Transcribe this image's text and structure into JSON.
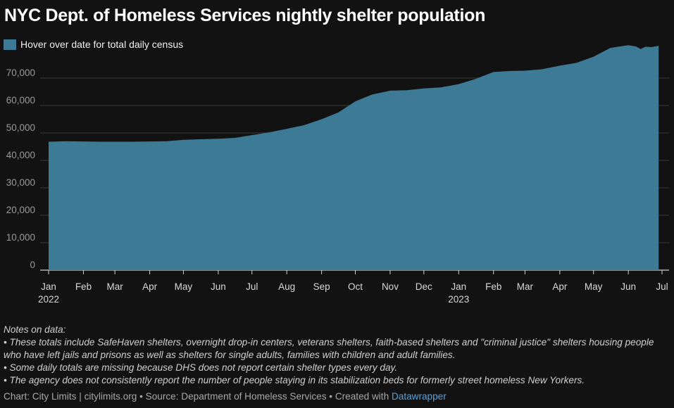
{
  "title": "NYC Dept. of Homeless Services nightly shelter population",
  "legend": {
    "label": "Hover over date for total daily census",
    "color": "#3d7a96"
  },
  "chart_data": {
    "type": "area",
    "title": "NYC Dept. of Homeless Services nightly shelter population",
    "ylim": [
      0,
      80000
    ],
    "yticks": [
      0,
      10000,
      20000,
      30000,
      40000,
      50000,
      60000,
      70000
    ],
    "ytick_labels": [
      "0",
      "10,000",
      "20,000",
      "30,000",
      "40,000",
      "50,000",
      "60,000",
      "70,000"
    ],
    "xlim": [
      "2022-01-01",
      "2023-07-01"
    ],
    "xticks": [
      {
        "date": "2022-01-01",
        "label": "Jan",
        "year": "2022"
      },
      {
        "date": "2022-02-01",
        "label": "Feb"
      },
      {
        "date": "2022-03-01",
        "label": "Mar"
      },
      {
        "date": "2022-04-01",
        "label": "Apr"
      },
      {
        "date": "2022-05-01",
        "label": "May"
      },
      {
        "date": "2022-06-01",
        "label": "Jun"
      },
      {
        "date": "2022-07-01",
        "label": "Jul"
      },
      {
        "date": "2022-08-01",
        "label": "Aug"
      },
      {
        "date": "2022-09-01",
        "label": "Sep"
      },
      {
        "date": "2022-10-01",
        "label": "Oct"
      },
      {
        "date": "2022-11-01",
        "label": "Nov"
      },
      {
        "date": "2022-12-01",
        "label": "Dec"
      },
      {
        "date": "2023-01-01",
        "label": "Jan",
        "year": "2023"
      },
      {
        "date": "2023-02-01",
        "label": "Feb"
      },
      {
        "date": "2023-03-01",
        "label": "Mar"
      },
      {
        "date": "2023-04-01",
        "label": "Apr"
      },
      {
        "date": "2023-05-01",
        "label": "May"
      },
      {
        "date": "2023-06-01",
        "label": "Jun"
      },
      {
        "date": "2023-07-01",
        "label": "Jul"
      }
    ],
    "grid": true,
    "series": [
      {
        "color": "#3d7a96",
        "points": [
          [
            "2022-01-01",
            46800
          ],
          [
            "2022-01-16",
            47000
          ],
          [
            "2022-02-01",
            46900
          ],
          [
            "2022-02-16",
            46800
          ],
          [
            "2022-03-01",
            46800
          ],
          [
            "2022-03-16",
            46800
          ],
          [
            "2022-04-01",
            46900
          ],
          [
            "2022-04-16",
            47000
          ],
          [
            "2022-05-01",
            47500
          ],
          [
            "2022-05-16",
            47700
          ],
          [
            "2022-06-01",
            47900
          ],
          [
            "2022-06-16",
            48200
          ],
          [
            "2022-07-01",
            49200
          ],
          [
            "2022-07-16",
            50200
          ],
          [
            "2022-08-01",
            51500
          ],
          [
            "2022-08-16",
            52800
          ],
          [
            "2022-09-01",
            55000
          ],
          [
            "2022-09-16",
            57500
          ],
          [
            "2022-10-01",
            61500
          ],
          [
            "2022-10-16",
            64000
          ],
          [
            "2022-11-01",
            65400
          ],
          [
            "2022-11-16",
            65600
          ],
          [
            "2022-12-01",
            66200
          ],
          [
            "2022-12-16",
            66600
          ],
          [
            "2023-01-01",
            67800
          ],
          [
            "2023-01-16",
            69700
          ],
          [
            "2023-02-01",
            72200
          ],
          [
            "2023-02-16",
            72600
          ],
          [
            "2023-03-01",
            72700
          ],
          [
            "2023-03-16",
            73200
          ],
          [
            "2023-04-01",
            74500
          ],
          [
            "2023-04-16",
            75600
          ],
          [
            "2023-05-01",
            77800
          ],
          [
            "2023-05-16",
            81000
          ],
          [
            "2023-06-01",
            82000
          ],
          [
            "2023-06-08",
            81500
          ],
          [
            "2023-06-12",
            80600
          ],
          [
            "2023-06-16",
            81400
          ],
          [
            "2023-06-22",
            81300
          ],
          [
            "2023-06-28",
            81800
          ]
        ]
      }
    ]
  },
  "notes": {
    "heading": "Notes on data:",
    "items": [
      "• These totals include SafeHaven shelters, overnight drop-in centers, veterans shelters, faith-based shelters and \"criminal justice\" shelters housing people who have left jails and prisons as well as shelters for single adults, families with children and adult families.",
      "• Some daily totals are missing because DHS does not report certain shelter types every day.",
      "• The agency does not consistently report the number of people staying in its stabilization beds for formerly street homeless New Yorkers."
    ]
  },
  "footer": {
    "text": "Chart: City Limits | citylimits.org • Source: Department of Homeless Services • Created with ",
    "link": "Datawrapper"
  }
}
